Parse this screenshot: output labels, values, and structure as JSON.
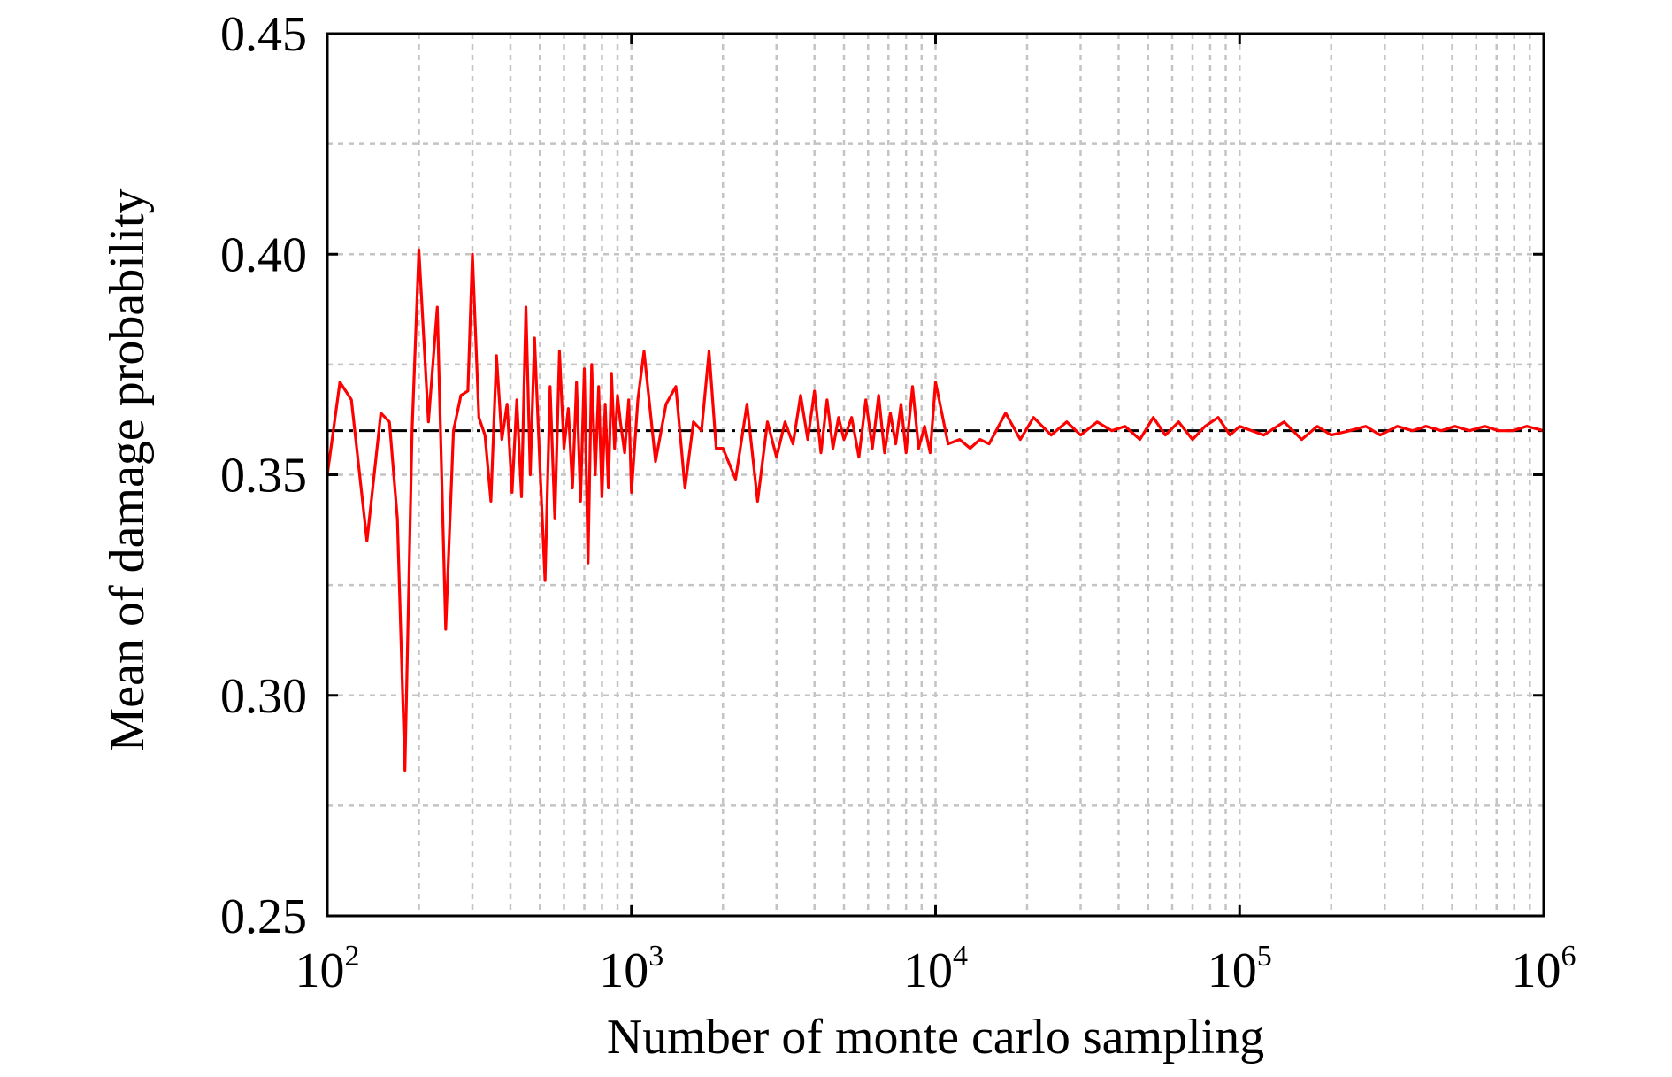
{
  "chart_data": {
    "type": "line",
    "title": "",
    "xlabel": "Number of monte carlo sampling",
    "ylabel": "Mean of damage probability",
    "xscale": "log",
    "xlim": [
      100,
      1000000
    ],
    "ylim": [
      0.25,
      0.45
    ],
    "grid": true,
    "legend": "none",
    "x_ticks": [
      {
        "value": 100,
        "base": "10",
        "exp": "2"
      },
      {
        "value": 1000,
        "base": "10",
        "exp": "3"
      },
      {
        "value": 10000,
        "base": "10",
        "exp": "4"
      },
      {
        "value": 100000,
        "base": "10",
        "exp": "5"
      },
      {
        "value": 1000000,
        "base": "10",
        "exp": "6"
      }
    ],
    "y_ticks": [
      {
        "value": 0.25,
        "label": "0.25"
      },
      {
        "value": 0.3,
        "label": "0.30"
      },
      {
        "value": 0.35,
        "label": "0.35"
      },
      {
        "value": 0.4,
        "label": "0.40"
      },
      {
        "value": 0.45,
        "label": "0.45"
      }
    ],
    "reference_line": {
      "y": 0.36,
      "style": "dash-dot",
      "color": "#000000"
    },
    "series": [
      {
        "color": "#ff0000",
        "x": [
          100,
          110,
          120,
          135,
          150,
          160,
          170,
          180,
          190,
          200,
          215,
          230,
          245,
          260,
          275,
          290,
          300,
          315,
          330,
          345,
          360,
          375,
          390,
          405,
          420,
          435,
          450,
          465,
          480,
          500,
          520,
          540,
          560,
          580,
          600,
          620,
          640,
          660,
          680,
          700,
          720,
          740,
          760,
          780,
          800,
          820,
          840,
          860,
          880,
          900,
          920,
          950,
          980,
          1000,
          1050,
          1100,
          1200,
          1300,
          1400,
          1500,
          1600,
          1700,
          1800,
          1900,
          2000,
          2200,
          2400,
          2600,
          2800,
          3000,
          3200,
          3400,
          3600,
          3800,
          4000,
          4200,
          4400,
          4600,
          4800,
          5000,
          5300,
          5600,
          5900,
          6200,
          6500,
          6800,
          7100,
          7400,
          7700,
          8000,
          8400,
          8800,
          9200,
          9600,
          10000,
          11000,
          12000,
          13000,
          14000,
          15000,
          17000,
          19000,
          21000,
          24000,
          27000,
          30000,
          34000,
          38000,
          42000,
          47000,
          52000,
          57000,
          63000,
          70000,
          77000,
          85000,
          93000,
          100000,
          120000,
          140000,
          160000,
          180000,
          200000,
          230000,
          260000,
          290000,
          330000,
          370000,
          410000,
          460000,
          510000,
          570000,
          640000,
          710000,
          790000,
          880000,
          1000000
        ],
        "y": [
          0.35,
          0.371,
          0.367,
          0.335,
          0.364,
          0.362,
          0.34,
          0.283,
          0.36,
          0.401,
          0.362,
          0.388,
          0.315,
          0.36,
          0.368,
          0.369,
          0.4,
          0.363,
          0.359,
          0.344,
          0.377,
          0.358,
          0.366,
          0.346,
          0.367,
          0.345,
          0.388,
          0.35,
          0.381,
          0.352,
          0.326,
          0.37,
          0.34,
          0.378,
          0.356,
          0.365,
          0.347,
          0.371,
          0.344,
          0.374,
          0.33,
          0.375,
          0.35,
          0.37,
          0.345,
          0.366,
          0.347,
          0.373,
          0.356,
          0.368,
          0.362,
          0.355,
          0.367,
          0.346,
          0.367,
          0.378,
          0.353,
          0.366,
          0.37,
          0.347,
          0.362,
          0.36,
          0.378,
          0.356,
          0.356,
          0.349,
          0.366,
          0.344,
          0.362,
          0.354,
          0.362,
          0.357,
          0.368,
          0.358,
          0.369,
          0.355,
          0.367,
          0.356,
          0.363,
          0.358,
          0.363,
          0.354,
          0.367,
          0.356,
          0.368,
          0.355,
          0.364,
          0.357,
          0.366,
          0.355,
          0.37,
          0.356,
          0.361,
          0.355,
          0.371,
          0.357,
          0.358,
          0.356,
          0.358,
          0.357,
          0.364,
          0.358,
          0.363,
          0.359,
          0.362,
          0.359,
          0.362,
          0.36,
          0.361,
          0.358,
          0.363,
          0.359,
          0.362,
          0.358,
          0.361,
          0.363,
          0.359,
          0.361,
          0.359,
          0.362,
          0.358,
          0.361,
          0.359,
          0.36,
          0.361,
          0.359,
          0.361,
          0.36,
          0.361,
          0.36,
          0.361,
          0.36,
          0.361,
          0.36,
          0.36,
          0.361,
          0.36
        ]
      }
    ]
  }
}
